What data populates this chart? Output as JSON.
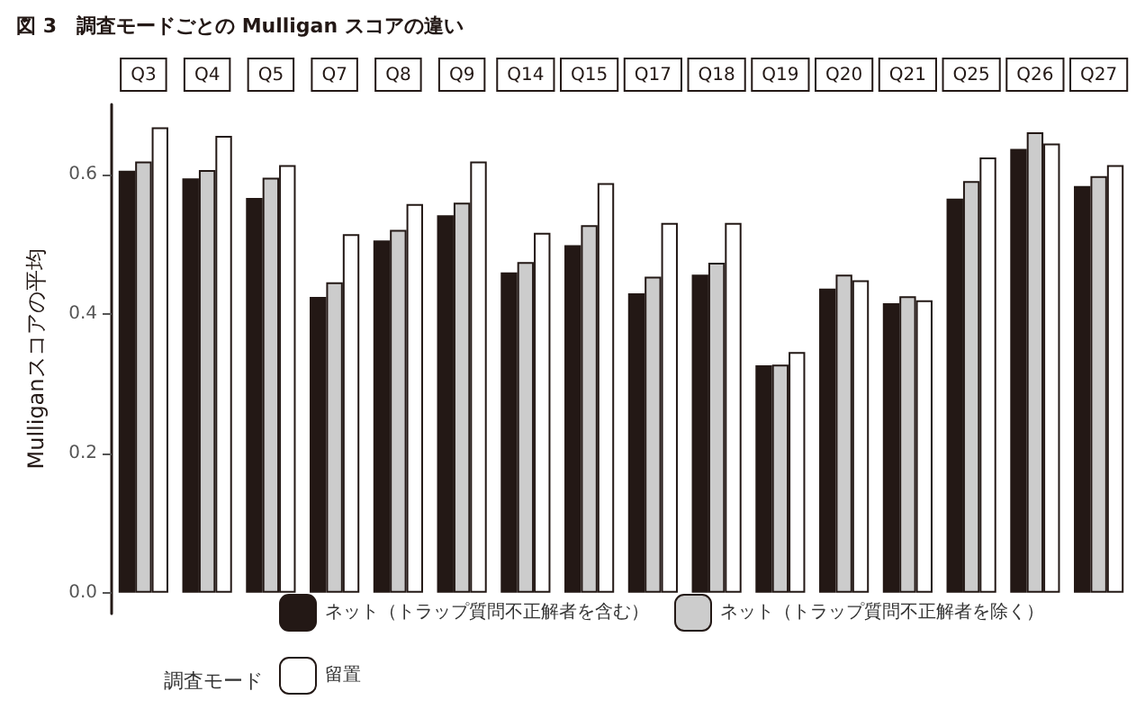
{
  "chart_data": {
    "type": "bar",
    "title": "図 3　調査モードごとの Mulligan スコアの違い",
    "ylabel": "Mulliganスコアの平均",
    "legend_title": "調査モード",
    "categories": [
      "Q3",
      "Q4",
      "Q5",
      "Q7",
      "Q8",
      "Q9",
      "Q14",
      "Q15",
      "Q17",
      "Q18",
      "Q19",
      "Q20",
      "Q21",
      "Q25",
      "Q26",
      "Q27"
    ],
    "series": [
      {
        "name": "ネット（トラップ質問不正解者を含む）",
        "color": "#231815",
        "values": [
          0.605,
          0.594,
          0.566,
          0.424,
          0.505,
          0.541,
          0.459,
          0.498,
          0.429,
          0.456,
          0.326,
          0.436,
          0.415,
          0.565,
          0.636,
          0.583
        ]
      },
      {
        "name": "ネット（トラップ質問不正解者を除く）",
        "color": "#cccccc",
        "values": [
          0.618,
          0.606,
          0.595,
          0.445,
          0.52,
          0.559,
          0.474,
          0.527,
          0.453,
          0.473,
          0.327,
          0.456,
          0.425,
          0.59,
          0.66,
          0.597
        ]
      },
      {
        "name": "留置",
        "color": "#ffffff",
        "values": [
          0.667,
          0.655,
          0.613,
          0.514,
          0.557,
          0.618,
          0.516,
          0.587,
          0.53,
          0.53,
          0.345,
          0.448,
          0.419,
          0.624,
          0.644,
          0.613
        ]
      }
    ],
    "ylim": [
      -0.03,
      0.7
    ],
    "yticks": [
      {
        "value": 0,
        "label": "0.0"
      },
      {
        "value": 0.2,
        "label": "0.2"
      },
      {
        "value": 0.4,
        "label": "0.4"
      },
      {
        "value": 0.6,
        "label": "0.6"
      }
    ],
    "grid": false,
    "legend": "bottom"
  }
}
